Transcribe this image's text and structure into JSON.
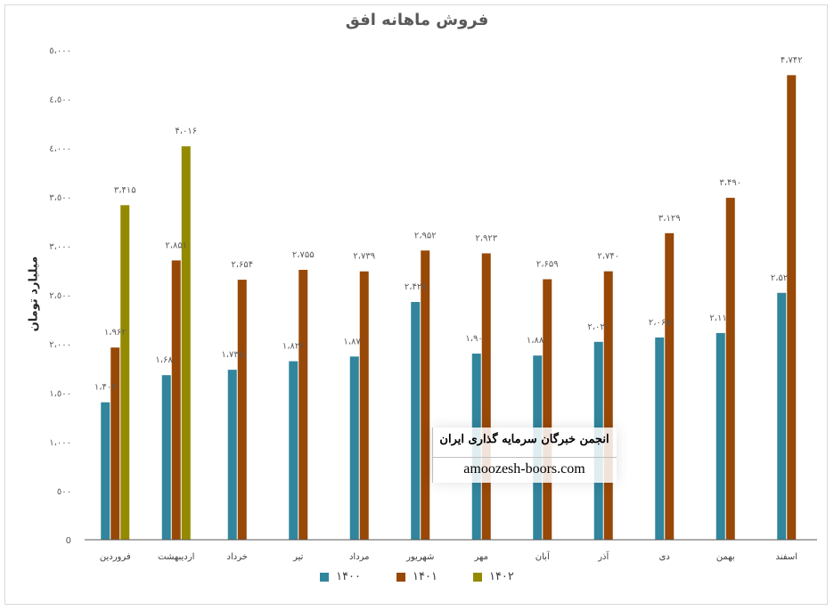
{
  "chart_data": {
    "type": "bar",
    "title": "فروش ماهانه افق",
    "ylabel": "میلیارد تومان",
    "xlabel": "",
    "ylim": [
      0,
      5000
    ],
    "yticks": [
      {
        "value": 0,
        "label": "0"
      },
      {
        "value": 500,
        "label": "٥٠٠"
      },
      {
        "value": 1000,
        "label": "١،٠٠٠"
      },
      {
        "value": 1500,
        "label": "١،٥٠٠"
      },
      {
        "value": 2000,
        "label": "٢،٠٠٠"
      },
      {
        "value": 2500,
        "label": "٢،٥٠٠"
      },
      {
        "value": 3000,
        "label": "٣،٠٠٠"
      },
      {
        "value": 3500,
        "label": "٣،٥٠٠"
      },
      {
        "value": 4000,
        "label": "٤،٠٠٠"
      },
      {
        "value": 4500,
        "label": "٤،٥٠٠"
      },
      {
        "value": 5000,
        "label": "٥،٠٠٠"
      }
    ],
    "categories": [
      "فروردین",
      "اردیبهشت",
      "خرداد",
      "تیر",
      "مرداد",
      "شهریور",
      "مهر",
      "آبان",
      "آذر",
      "دی",
      "بهمن",
      "اسفند"
    ],
    "series": [
      {
        "name": "۱۴۰۰",
        "color": "#31859c",
        "values": [
          1403,
          1680,
          1735,
          1822,
          1870,
          2427,
          1900,
          1880,
          2020,
          2065,
          2110,
          2520
        ],
        "labels": [
          "۱،۴۰۳",
          "۱،۶۸۰",
          "۱،۷۳۵",
          "۱،۸۲۲",
          "۱،۸۷۰",
          "۲،۴۲۷",
          "۱،۹۰۰",
          "۱،۸۸۰",
          "۲،۰۲۰",
          "۲،۰۶۵",
          "۲،۱۱۰",
          "۲،۵۲۰"
        ]
      },
      {
        "name": "۱۴۰۱",
        "color": "#984807",
        "values": [
          1962,
          2851,
          2654,
          2755,
          2739,
          2952,
          2923,
          2659,
          2740,
          3129,
          3490,
          4742
        ],
        "labels": [
          "۱،۹۶۲",
          "۲،۸۵۱",
          "۲،۶۵۴",
          "۲،۷۵۵",
          "۲،۷۳۹",
          "۲،۹۵۲",
          "۲،۹۲۳",
          "۲،۶۵۹",
          "۲،۷۴۰",
          "۳،۱۲۹",
          "۳،۴۹۰",
          "۴،۷۴۲"
        ]
      },
      {
        "name": "۱۴۰۲",
        "color": "#948a00",
        "values": [
          3415,
          4016,
          null,
          null,
          null,
          null,
          null,
          null,
          null,
          null,
          null,
          null
        ],
        "labels": [
          "۳،۴۱۵",
          "۴،۰۱۶",
          "",
          "",
          "",
          "",
          "",
          "",
          "",
          "",
          "",
          ""
        ]
      }
    ],
    "legend": "bottom",
    "grid": false
  },
  "watermark": {
    "line1": "انجمن خبرگان سرمایه گذاری ایران",
    "line2": "amoozesh-boors.com"
  }
}
